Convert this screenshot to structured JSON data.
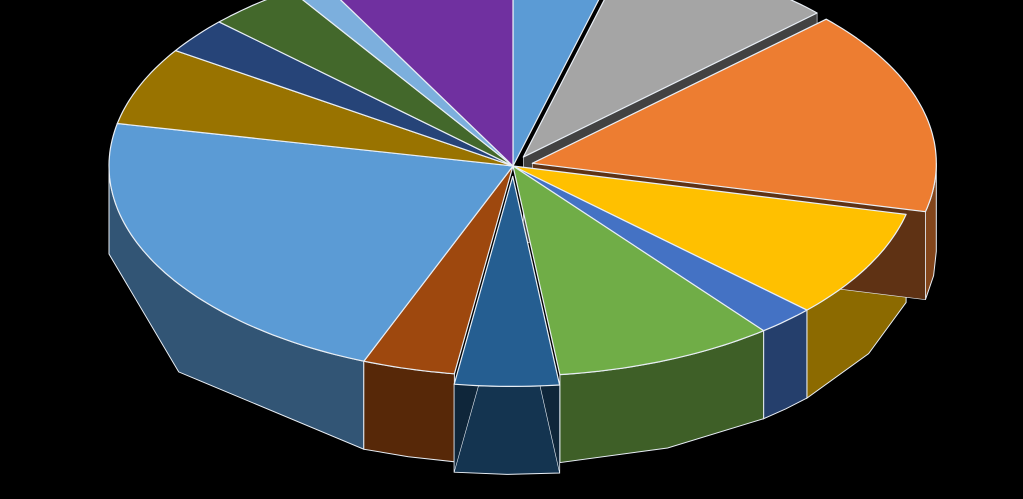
{
  "chart_data": {
    "type": "pie",
    "title": "",
    "background": "#000000",
    "exploded": [
      1,
      2,
      6
    ],
    "series": [
      {
        "name": "",
        "values": [
          4.5,
          9.5,
          17,
          9,
          2.5,
          9.5,
          4.5,
          4,
          24,
          6.5,
          3,
          4,
          1.5,
          8.5
        ]
      }
    ],
    "colors": [
      "#5B9BD5",
      "#A5A5A5",
      "#ED7D31",
      "#FFC000",
      "#4472C4",
      "#70AD47",
      "#255E91",
      "#9E480E",
      "#5B9BD5",
      "#997300",
      "#264478",
      "#43682B",
      "#7CAFDD",
      "#7030A0"
    ]
  }
}
